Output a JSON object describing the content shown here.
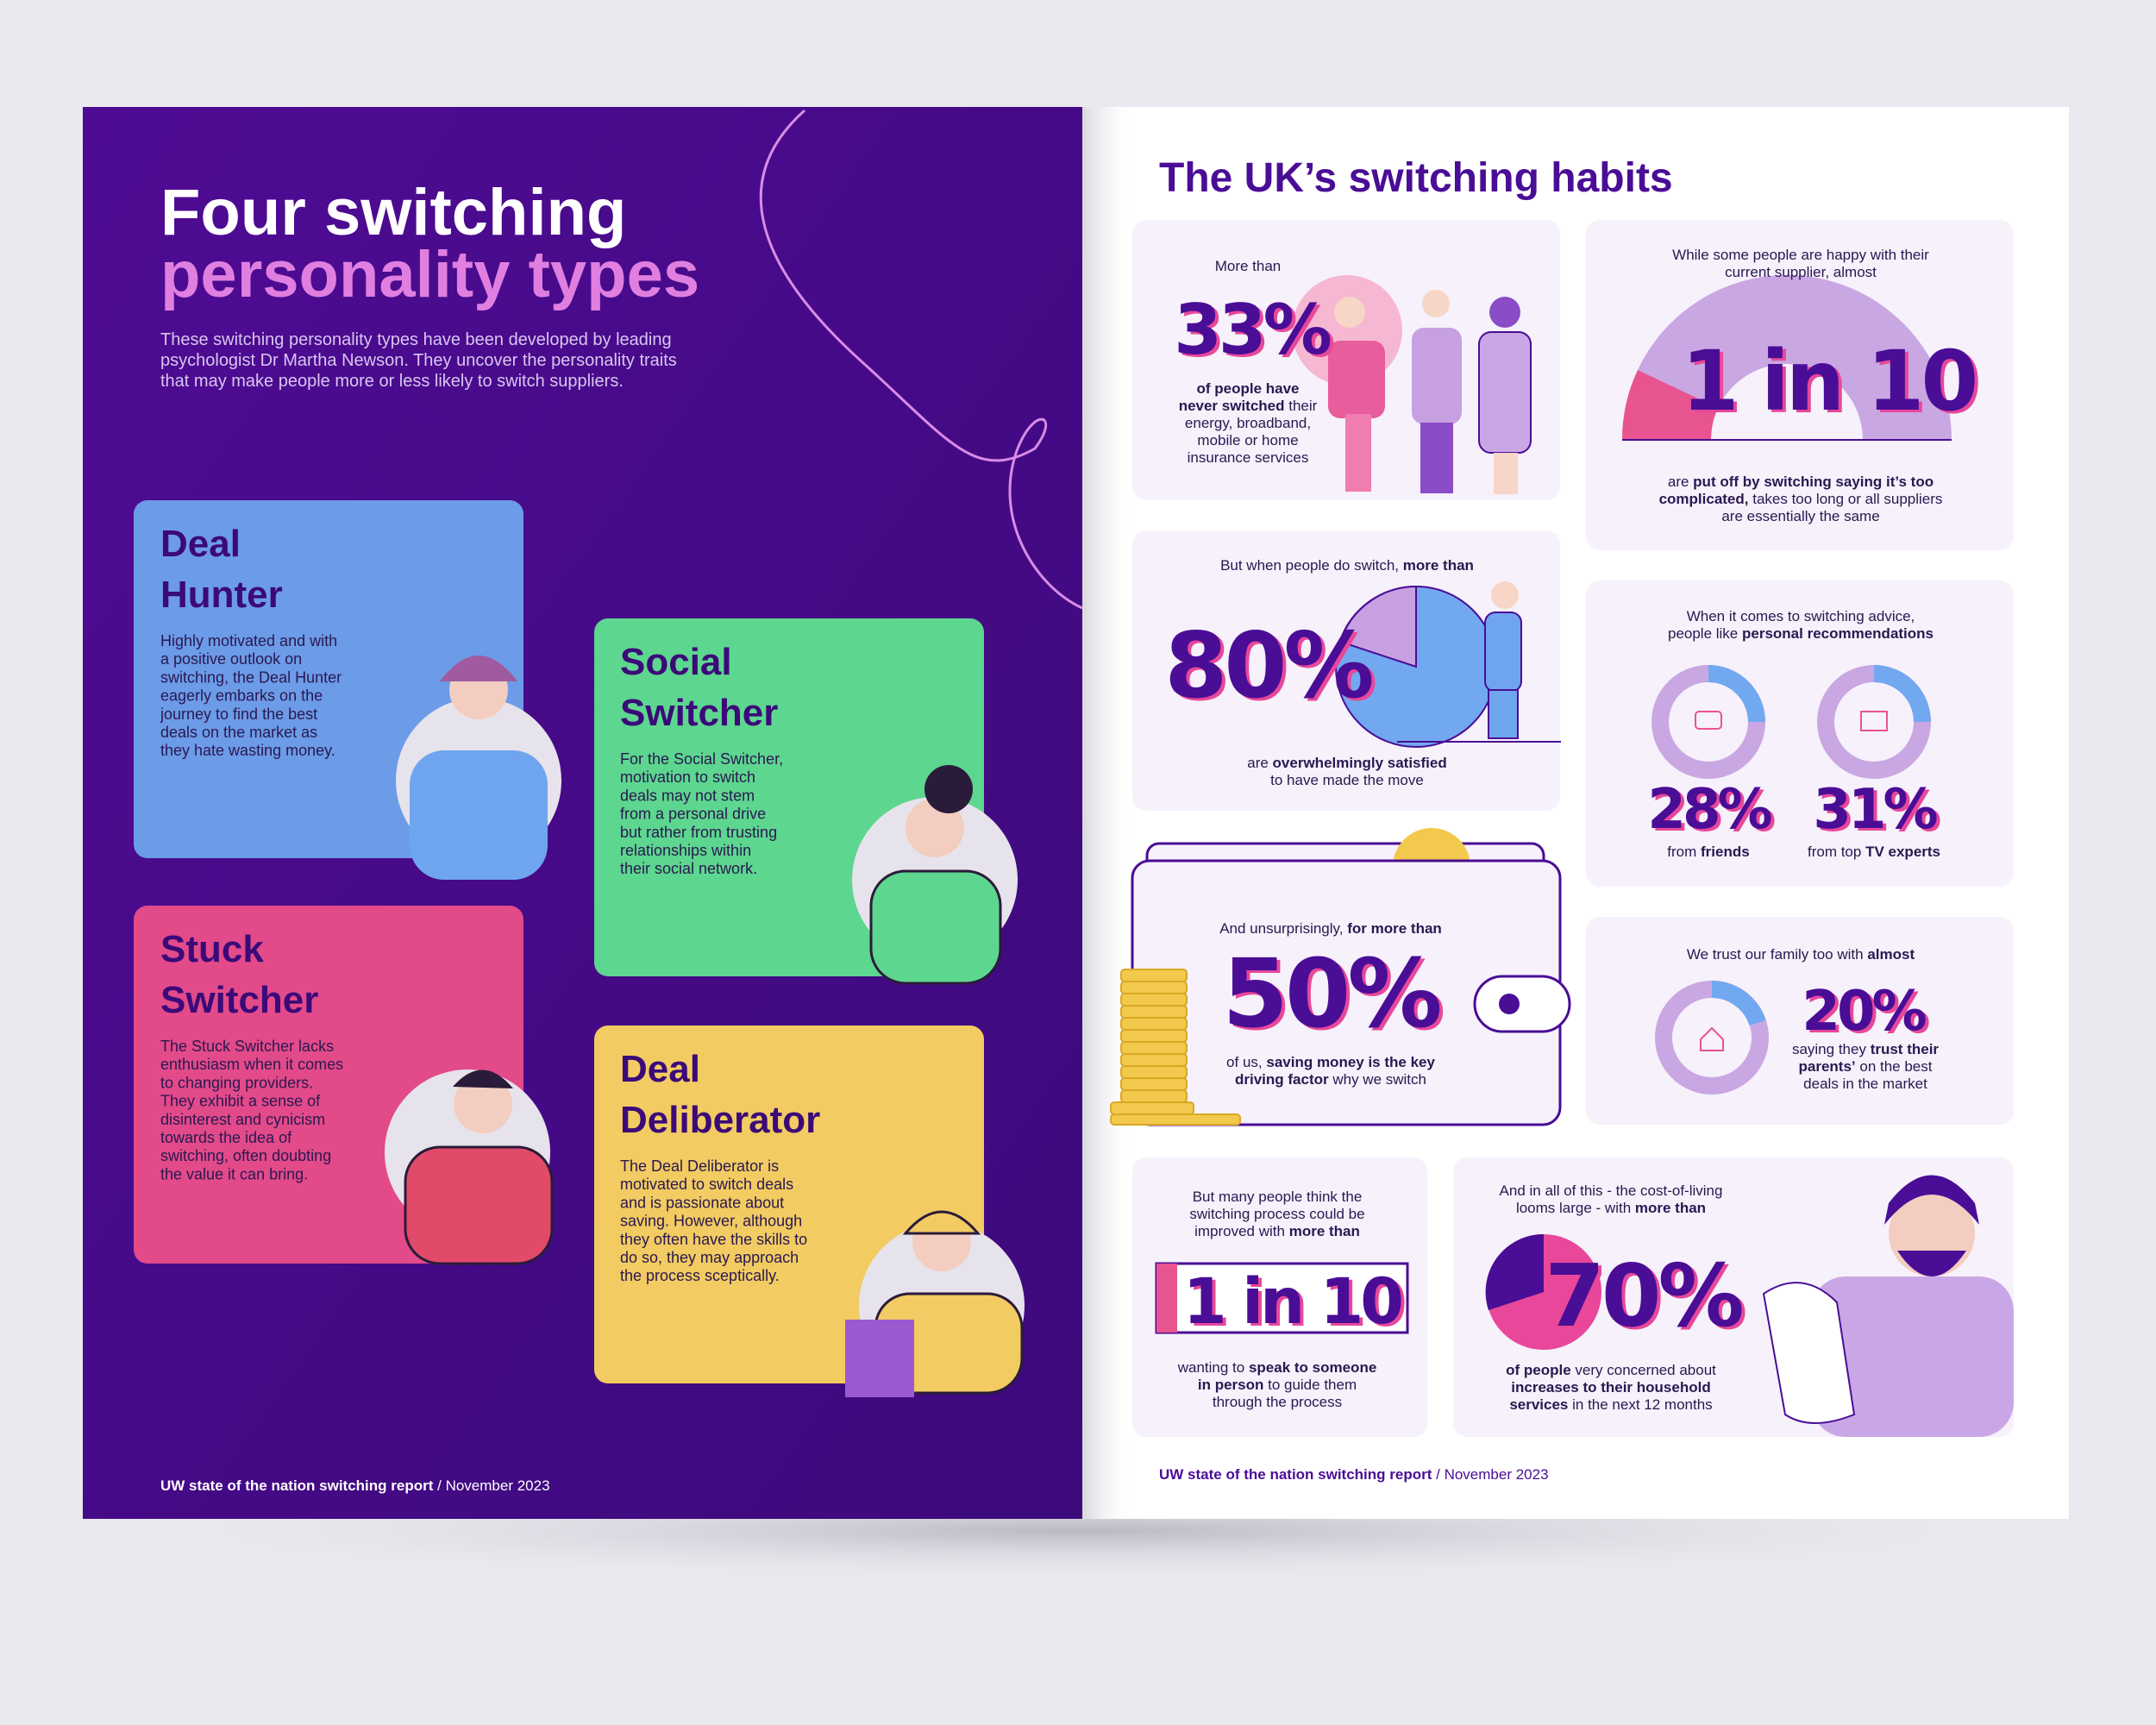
{
  "left": {
    "title": [
      "Four switching",
      "personality types"
    ],
    "intro": [
      "These switching personality types have been developed by leading",
      "psychologist Dr Martha Newson. They uncover the personality traits",
      "that may make people more or less likely to switch suppliers."
    ],
    "cards": [
      {
        "title": [
          "Deal",
          "Hunter"
        ],
        "color": "#6c9be8",
        "body": [
          "Highly motivated and with",
          "a positive outlook on",
          "switching, the Deal Hunter",
          "eagerly embarks on the",
          "journey to find the best",
          "deals on the market as",
          "they hate wasting money."
        ]
      },
      {
        "title": [
          "Social",
          "Switcher"
        ],
        "color": "#5dd68f",
        "body": [
          "For the Social Switcher,",
          "motivation to switch",
          "deals may not stem",
          "from a personal drive",
          "but rather from trusting",
          "relationships within",
          "their social network."
        ]
      },
      {
        "title": [
          "Stuck",
          "Switcher"
        ],
        "color": "#e24a8a",
        "body": [
          "The Stuck Switcher lacks",
          "enthusiasm when it comes",
          "to changing providers.",
          "They exhibit a sense of",
          "disinterest and cynicism",
          "towards the idea of",
          "switching, often doubting",
          "the value it can bring."
        ]
      },
      {
        "title": [
          "Deal",
          "Deliberator"
        ],
        "color": "#f2cb62",
        "body": [
          "The Deal Deliberator is",
          "motivated to switch deals",
          "and is passionate about",
          "saving. However, although",
          "they often have the skills to",
          "do so, they may approach",
          "the process sceptically."
        ]
      }
    ],
    "footer": [
      [
        {
          "t": "UW state of the nation switching report",
          "b": true
        },
        {
          "t": " / November 2023"
        }
      ]
    ]
  },
  "right": {
    "title": "The UK’s switching habits",
    "cards": [
      {
        "top": [
          [
            {
              "t": "More than"
            }
          ]
        ],
        "stat": "33%",
        "bottom": [
          [
            {
              "t": "of people have",
              "b": true
            }
          ],
          [
            {
              "t": "never switched",
              "b": true
            },
            {
              "t": " their"
            }
          ],
          [
            {
              "t": "energy, broadband,"
            }
          ],
          [
            {
              "t": "mobile or home"
            }
          ],
          [
            {
              "t": "insurance services"
            }
          ]
        ]
      },
      {
        "top": [
          [
            {
              "t": "While some people are happy with their"
            }
          ],
          [
            {
              "t": "current supplier, almost"
            }
          ]
        ],
        "stat": "1 in 10",
        "bottom": [
          [
            {
              "t": "are "
            },
            {
              "t": "put off by switching saying it’s too",
              "b": true
            }
          ],
          [
            {
              "t": "complicated,",
              "b": true
            },
            {
              "t": " takes too long or all suppliers"
            }
          ],
          [
            {
              "t": "are essentially the same"
            }
          ]
        ]
      },
      {
        "top": [
          [
            {
              "t": "But when people do switch, "
            },
            {
              "t": "more than",
              "b": true
            }
          ]
        ],
        "stat": "80%",
        "bottom": [
          [
            {
              "t": "are "
            },
            {
              "t": "overwhelmingly satisfied",
              "b": true
            }
          ],
          [
            {
              "t": "to have made the move"
            }
          ]
        ]
      },
      {
        "top": [
          [
            {
              "t": "When it comes to switching advice,"
            }
          ],
          [
            {
              "t": "people like "
            },
            {
              "t": "personal recommendations",
              "b": true
            }
          ]
        ],
        "stats": [
          {
            "value": "28%",
            "label": [
              [
                {
                  "t": "from "
                },
                {
                  "t": "friends",
                  "b": true
                }
              ]
            ]
          },
          {
            "value": "31%",
            "label": [
              [
                {
                  "t": "from top "
                },
                {
                  "t": "TV experts",
                  "b": true
                }
              ]
            ]
          }
        ]
      },
      {
        "top": [
          [
            {
              "t": "And unsurprisingly, "
            },
            {
              "t": "for more than",
              "b": true
            }
          ]
        ],
        "stat": "50%",
        "bottom": [
          [
            {
              "t": "of us, "
            },
            {
              "t": "saving money is the key",
              "b": true
            }
          ],
          [
            {
              "t": "driving factor",
              "b": true
            },
            {
              "t": " why we switch"
            }
          ]
        ]
      },
      {
        "top": [
          [
            {
              "t": "We trust our family too with "
            },
            {
              "t": "almost",
              "b": true
            }
          ]
        ],
        "stat": "20%",
        "bottom": [
          [
            {
              "t": "saying they "
            },
            {
              "t": "trust their",
              "b": true
            }
          ],
          [
            {
              "t": "parents’",
              "b": true
            },
            {
              "t": " on the best"
            }
          ],
          [
            {
              "t": "deals in the market"
            }
          ]
        ]
      },
      {
        "top": [
          [
            {
              "t": "But many people think the"
            }
          ],
          [
            {
              "t": "switching process could be"
            }
          ],
          [
            {
              "t": "improved with "
            },
            {
              "t": "more than",
              "b": true
            }
          ]
        ],
        "stat": "1 in 10",
        "bottom": [
          [
            {
              "t": "wanting to "
            },
            {
              "t": "speak to someone",
              "b": true
            }
          ],
          [
            {
              "t": "in person",
              "b": true
            },
            {
              "t": " to guide them"
            }
          ],
          [
            {
              "t": "through the process"
            }
          ]
        ]
      },
      {
        "top": [
          [
            {
              "t": "And in all of this - the cost-of-living"
            }
          ],
          [
            {
              "t": "looms large - with "
            },
            {
              "t": "more than",
              "b": true
            }
          ]
        ],
        "stat": "70%",
        "bottom": [
          [
            {
              "t": "of people",
              "b": true
            },
            {
              "t": " very concerned about"
            }
          ],
          [
            {
              "t": "increases to their household",
              "b": true
            }
          ],
          [
            {
              "t": "services",
              "b": true
            },
            {
              "t": " in the next 12 months"
            }
          ]
        ]
      }
    ],
    "footer": [
      [
        {
          "t": "UW state of the nation switching report",
          "b": true
        },
        {
          "t": " / November 2023"
        }
      ]
    ]
  }
}
